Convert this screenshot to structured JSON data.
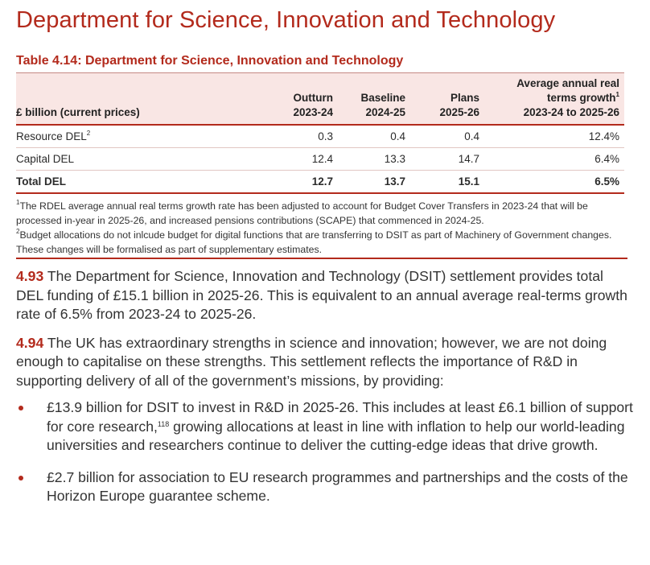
{
  "page": {
    "heading": "Department for Science, Innovation and Technology"
  },
  "table": {
    "title": "Table 4.14: Department for Science, Innovation and Technology",
    "headers": {
      "units": "£ billion (current prices)",
      "outturn_top": "Outturn",
      "outturn_year": "2023-24",
      "baseline_top": "Baseline",
      "baseline_year": "2024-25",
      "plans_top": "Plans",
      "plans_year": "2025-26",
      "growth_line1": "Average annual real",
      "growth_line2": "terms growth",
      "growth_sup": "1",
      "growth_line3": "2023-24 to 2025-26"
    },
    "rows": [
      {
        "label": "Resource DEL",
        "sup": "2",
        "outturn": "0.3",
        "baseline": "0.4",
        "plans": "0.4",
        "growth": "12.4%"
      },
      {
        "label": "Capital DEL",
        "sup": "",
        "outturn": "12.4",
        "baseline": "13.3",
        "plans": "14.7",
        "growth": "6.4%"
      },
      {
        "label": "Total DEL",
        "sup": "",
        "outturn": "12.7",
        "baseline": "13.7",
        "plans": "15.1",
        "growth": "6.5%"
      }
    ],
    "footnotes": [
      {
        "marker": "1",
        "text": "The RDEL average annual real terms growth rate has been adjusted to account for Budget Cover Transfers in 2023-24 that will be processed in-year in 2025-26, and increased pensions contributions (SCAPE) that commenced in 2024-25."
      },
      {
        "marker": "2",
        "text": "Budget allocations do not inlcude budget for digital functions that are transferring to DSIT as part of Machinery of Government changes. These changes will be formalised as part of supplementary estimates."
      }
    ]
  },
  "paragraphs": [
    {
      "number": "4.93",
      "text": "The Department for Science, Innovation and Technology (DSIT) settlement provides total DEL funding of £15.1 billion in 2025-26. This is equivalent to an annual average real-terms growth rate of 6.5% from 2023-24 to 2025-26."
    },
    {
      "number": "4.94",
      "text": "The UK has extraordinary strengths in science and innovation; however, we are not doing enough to capitalise on these strengths. This settlement reflects the importance of R&D in supporting delivery of all of the government’s missions, by providing:"
    }
  ],
  "bullets": [
    {
      "before": "£13.9 billion for DSIT to invest in R&D in 2025-26. This includes at least £6.1 billion of support for core research,",
      "footnote": "118",
      "after": " growing allocations at least in line with inflation to help our world-leading universities and researchers continue to deliver the cutting-edge ideas that drive growth."
    },
    {
      "before": "£2.7 billion for association to EU research programmes and partnerships and the costs of the Horizon Europe guarantee scheme.",
      "footnote": "",
      "after": ""
    }
  ]
}
